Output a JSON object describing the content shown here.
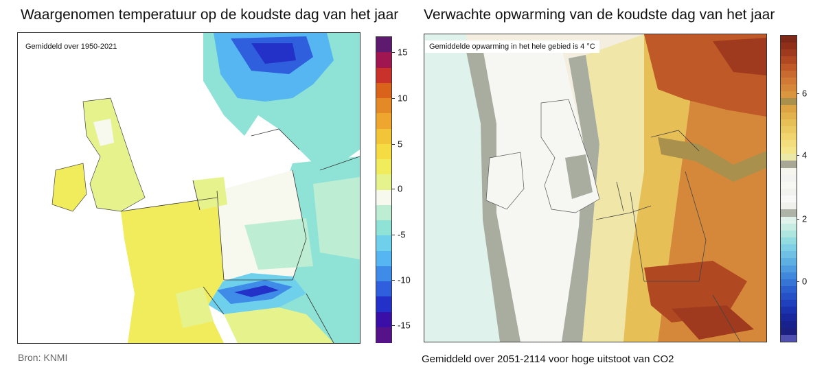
{
  "left_panel": {
    "title": "Waargenomen temperatuur op de koudste dag van het jaar",
    "note": "Gemiddeld over 1950-2021",
    "colorbar": {
      "ticks": [
        "15",
        "10",
        "5",
        "0",
        "-5",
        "-10",
        "-15"
      ],
      "colors": [
        "#5e1a6e",
        "#a01650",
        "#c8322a",
        "#d9631b",
        "#e38a26",
        "#eea62e",
        "#f2c438",
        "#f4dc42",
        "#f1ec5c",
        "#e6f28c",
        "#f7f9ef",
        "#bdeed3",
        "#8fe3d6",
        "#6fd0ec",
        "#55b6f2",
        "#3e8be8",
        "#2f5fdc",
        "#2431c8",
        "#3a0fa8",
        "#561288"
      ]
    },
    "footer": "Bron: KNMI"
  },
  "right_panel": {
    "title": "Verwachte opwarming van de koudste dag van het jaar",
    "note": "Gemiddelde opwarming in het hele gebied is 4 °C",
    "colorbar": {
      "ticks": [
        "6",
        "4",
        "2",
        "0"
      ],
      "colors": [
        "#7e2818",
        "#8f2f1a",
        "#a03a1e",
        "#b04822",
        "#bf5a28",
        "#c96a30",
        "#d07a36",
        "#d6883a",
        "#da963f",
        "#a9904c",
        "#dca443",
        "#e2b24c",
        "#e7bf57",
        "#ecca62",
        "#f0d56e",
        "#f2de7c",
        "#f4e58a",
        "#ece9a8",
        "#a8a795",
        "#f6f6ee",
        "#f3f3f1",
        "#f7f7f4",
        "#f2f2ef",
        "#f8f8f6",
        "#f0f0ec",
        "#aeb3a8",
        "#dff2eb",
        "#c6ece3",
        "#aee6df",
        "#92dce0",
        "#7fd0e4",
        "#6fc0e4",
        "#5fb0e2",
        "#4f9ce0",
        "#4088dc",
        "#3674d6",
        "#2c60ce",
        "#2550c6",
        "#1f40bc",
        "#1a32ae",
        "#18289c",
        "#18228c",
        "#1c1f80",
        "#5050b0"
      ]
    },
    "footer": "Gemiddeld over 2051-2114 voor hoge uitstoot van CO2"
  }
}
